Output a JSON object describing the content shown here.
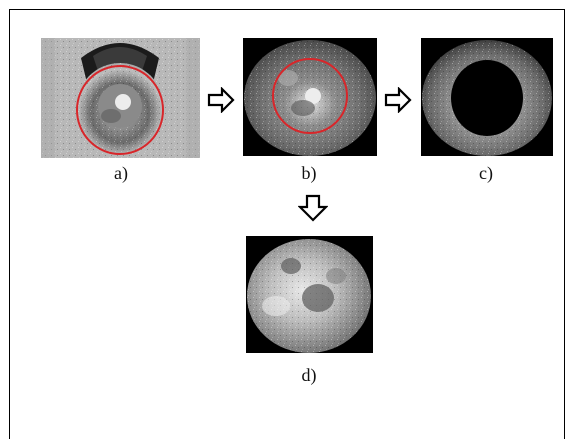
{
  "figure": {
    "labels": {
      "a": "a)",
      "b": "b)",
      "c": "c)",
      "d": "d)"
    },
    "colors": {
      "segmentation_circle": "#d8262a",
      "frame": "#000000",
      "arrow": "#000000"
    }
  }
}
